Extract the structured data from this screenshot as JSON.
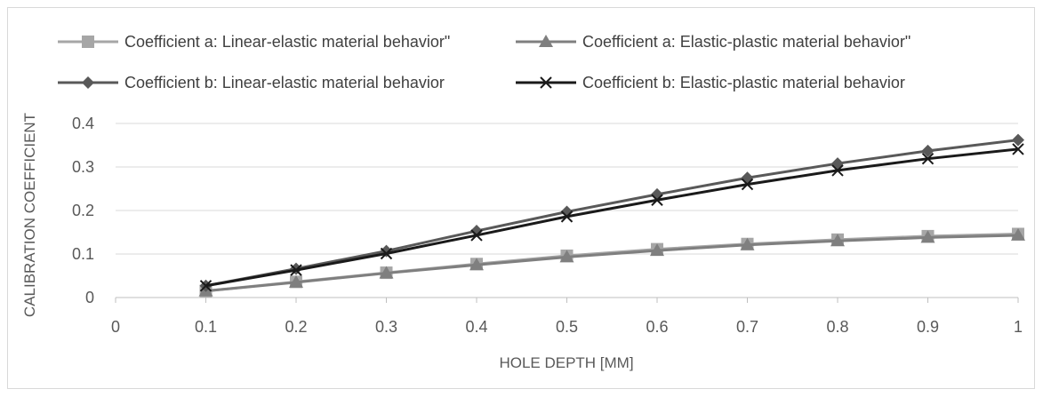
{
  "chart_data": {
    "type": "line",
    "title": "",
    "xlabel": "HOLE DEPTH [MM]",
    "ylabel": "CALIBRATION COEFFICIENT",
    "xlim": [
      0,
      1
    ],
    "ylim": [
      0,
      0.4
    ],
    "xticks": [
      "0",
      "0.1",
      "0.2",
      "0.3",
      "0.4",
      "0.5",
      "0.6",
      "0.7",
      "0.8",
      "0.9",
      "1"
    ],
    "yticks": [
      "0",
      "0.1",
      "0.2",
      "0.3",
      "0.4"
    ],
    "grid": "horizontal",
    "legend": "top",
    "x": [
      0.1,
      0.2,
      0.3,
      0.4,
      0.5,
      0.6,
      0.7,
      0.8,
      0.9,
      1.0
    ],
    "series": [
      {
        "name": "Coefficient a: Linear-elastic material behavior\"",
        "color": "#a6a6a6",
        "marker": "square",
        "values": [
          0.015,
          0.036,
          0.057,
          0.077,
          0.096,
          0.111,
          0.123,
          0.133,
          0.141,
          0.146
        ]
      },
      {
        "name": "Coefficient a: Elastic-plastic material behavior\"",
        "color": "#7f7f7f",
        "marker": "triangle",
        "values": [
          0.015,
          0.035,
          0.056,
          0.075,
          0.093,
          0.108,
          0.121,
          0.13,
          0.138,
          0.143
        ]
      },
      {
        "name": "Coefficient b: Linear-elastic material behavior",
        "color": "#595959",
        "marker": "diamond",
        "values": [
          0.027,
          0.066,
          0.107,
          0.153,
          0.197,
          0.237,
          0.275,
          0.308,
          0.337,
          0.362
        ]
      },
      {
        "name": "Coefficient b: Elastic-plastic material behavior",
        "color": "#1a1a1a",
        "marker": "x",
        "values": [
          0.027,
          0.063,
          0.101,
          0.143,
          0.186,
          0.224,
          0.26,
          0.292,
          0.319,
          0.341
        ]
      }
    ]
  }
}
